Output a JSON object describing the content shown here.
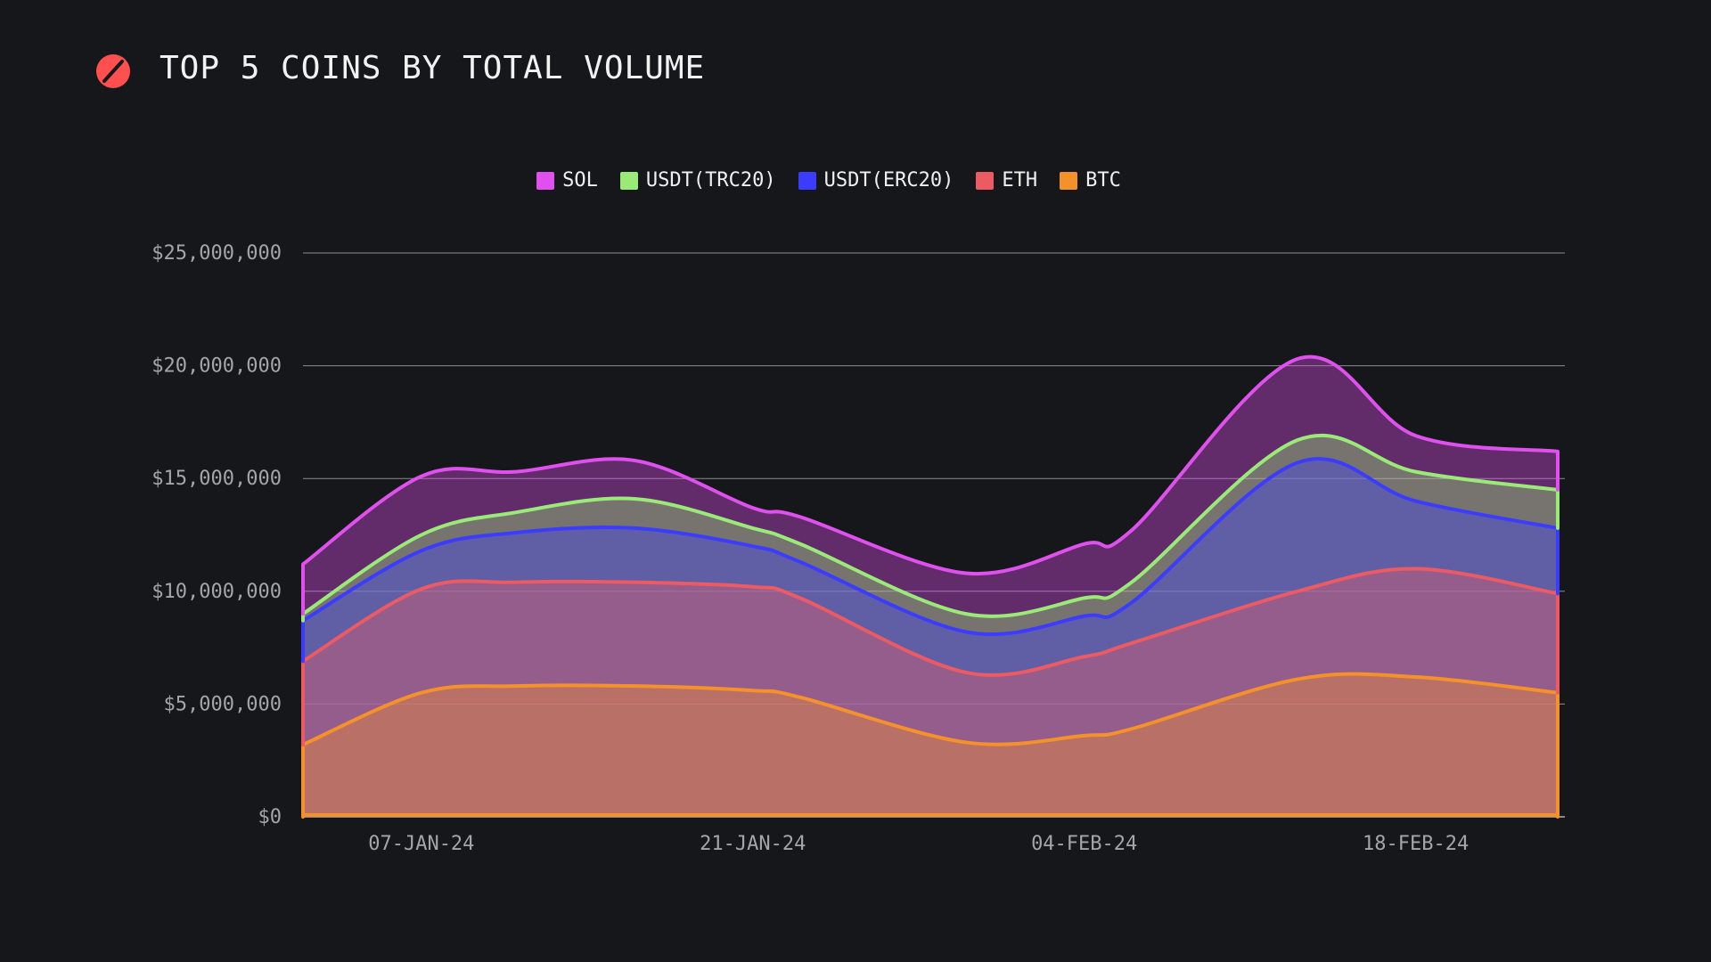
{
  "header": {
    "title": "TOP 5 COINS BY TOTAL VOLUME",
    "logo_icon": "slashed-circle-icon",
    "logo_color": "#ff4f4f"
  },
  "colors": {
    "background": "#16171b",
    "grid": "#8b8c90",
    "tick_text": "#a4a5a9"
  },
  "chart_data": {
    "type": "area",
    "stacked": true,
    "title": "TOP 5 COINS BY TOTAL VOLUME",
    "xlabel": "",
    "ylabel": "",
    "x_dates": [
      "2024-01-02",
      "2024-01-07",
      "2024-01-11",
      "2024-01-16",
      "2024-01-21",
      "2024-01-23",
      "2024-01-30",
      "2024-02-04",
      "2024-02-06",
      "2024-02-13",
      "2024-02-18",
      "2024-02-24"
    ],
    "x_ticks": [
      "07-JAN-24",
      "21-JAN-24",
      "04-FEB-24",
      "18-FEB-24"
    ],
    "y_ticks": [
      "$0",
      "$5,000,000",
      "$10,000,000",
      "$15,000,000",
      "$20,000,000",
      "$25,000,000"
    ],
    "ylim": [
      0,
      25000000
    ],
    "grid": true,
    "legend_placement": "top-center",
    "series": [
      {
        "name": "BTC",
        "color": "#f5912b",
        "values": [
          3200000,
          5500000,
          5800000,
          5800000,
          5600000,
          5300000,
          3300000,
          3600000,
          3900000,
          6100000,
          6200000,
          5500000
        ]
      },
      {
        "name": "ETH",
        "color": "#ec5a63",
        "values": [
          3700000,
          4600000,
          4600000,
          4600000,
          4600000,
          4400000,
          3100000,
          3500000,
          3800000,
          3900000,
          4800000,
          4400000
        ]
      },
      {
        "name": "USDT(ERC20)",
        "color": "#3c3cff",
        "values": [
          1800000,
          1700000,
          2200000,
          2400000,
          1800000,
          1600000,
          1800000,
          1800000,
          1800000,
          5700000,
          3000000,
          2900000
        ]
      },
      {
        "name": "USDT(TRC20)",
        "color": "#9aea77",
        "values": [
          300000,
          700000,
          900000,
          1300000,
          800000,
          800000,
          800000,
          800000,
          900000,
          1000000,
          1300000,
          1700000
        ]
      },
      {
        "name": "SOL",
        "color": "#e050ee",
        "values": [
          2200000,
          2600000,
          1800000,
          1700000,
          900000,
          1200000,
          1800000,
          2400000,
          2300000,
          3600000,
          1600000,
          1700000
        ]
      }
    ]
  }
}
